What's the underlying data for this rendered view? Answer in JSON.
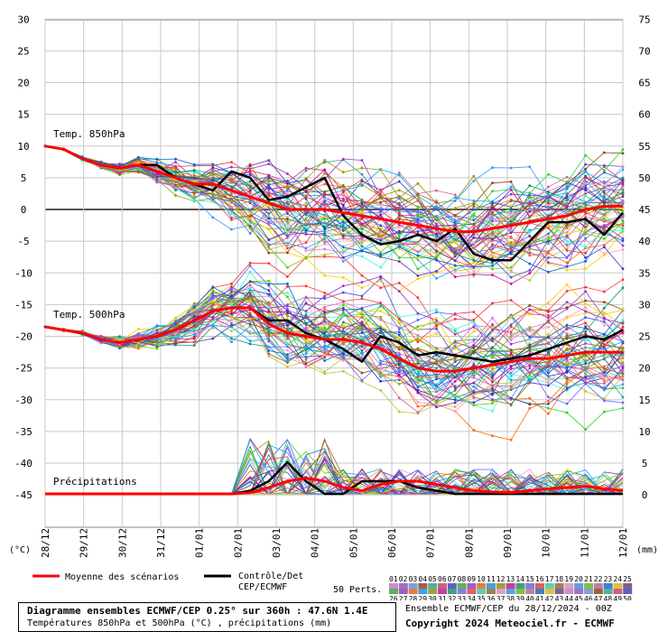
{
  "chart_data": {
    "type": "line",
    "x_ticks": [
      "28/12",
      "29/12",
      "30/12",
      "31/12",
      "01/01",
      "02/01",
      "03/01",
      "04/01",
      "05/01",
      "06/01",
      "07/01",
      "08/01",
      "09/01",
      "10/01",
      "11/01",
      "12/01"
    ],
    "left_axis": {
      "unit": "(°C)",
      "ticks": [
        30,
        25,
        20,
        15,
        10,
        5,
        0,
        -5,
        -10,
        -15,
        -20,
        -25,
        -30,
        -35,
        -40,
        -45
      ],
      "range": [
        -45,
        30
      ]
    },
    "right_axis": {
      "unit": "(mm)",
      "ticks": [
        75,
        70,
        65,
        60,
        55,
        50,
        45,
        40,
        35,
        30,
        25,
        20,
        15,
        10,
        5,
        0
      ],
      "range": [
        0,
        75
      ]
    },
    "panels": {
      "t850": {
        "label": "Temp. 850hPa"
      },
      "t500": {
        "label": "Temp. 500hPa"
      },
      "precip": {
        "label": "Précipitations"
      }
    },
    "series": [
      {
        "name": "Moyenne des scénarios",
        "color": "#ff0000",
        "t850": [
          10,
          9.5,
          8,
          7,
          6.5,
          7,
          6,
          5,
          4,
          4,
          3,
          2,
          1,
          0,
          0,
          0,
          -0.5,
          -1,
          -1.5,
          -2,
          -2.5,
          -3,
          -3.5,
          -3.5,
          -3,
          -2.5,
          -2,
          -1.5,
          -1,
          0,
          0.5,
          0.5
        ],
        "t500": [
          -18.5,
          -19,
          -19.5,
          -20.5,
          -21,
          -20.5,
          -20,
          -19,
          -17.5,
          -16,
          -15.5,
          -15.5,
          -18,
          -19.5,
          -20,
          -20.5,
          -20.5,
          -21,
          -22,
          -23.5,
          -25,
          -25.5,
          -25.5,
          -25,
          -24.5,
          -24,
          -23.5,
          -23.5,
          -23,
          -22.5,
          -22.5,
          -22.5
        ],
        "precip": [
          0,
          0,
          0,
          0,
          0,
          0,
          0,
          0,
          0,
          0,
          0,
          0.2,
          1,
          2,
          2.5,
          2,
          1,
          0.5,
          1.5,
          2,
          2,
          1.5,
          1,
          0.5,
          0.3,
          0.2,
          0.5,
          0.8,
          1,
          1.2,
          0.8,
          0.5
        ]
      },
      {
        "name": "Contrôle/Det CEP/ECMWF",
        "color": "#000000",
        "t850": [
          10,
          9.5,
          8,
          7,
          6.5,
          7,
          7,
          5,
          4,
          3,
          6,
          5,
          1.5,
          2,
          3.5,
          5,
          -1,
          -4,
          -5.5,
          -5,
          -4,
          -5,
          -3,
          -7,
          -8,
          -8,
          -5,
          -2,
          -2,
          -1.5,
          -4,
          -0.5
        ],
        "t500": [
          -18.5,
          -19,
          -19.5,
          -20.5,
          -21,
          -20.5,
          -20,
          -19,
          -17.5,
          -16,
          -15.5,
          -15.5,
          -17.5,
          -17.5,
          -19.5,
          -20.5,
          -22,
          -24,
          -20,
          -21,
          -23,
          -22.5,
          -23,
          -23.5,
          -24,
          -23.5,
          -23,
          -22,
          -21,
          -20,
          -20.5,
          -19
        ],
        "precip": [
          0,
          0,
          0,
          0,
          0,
          0,
          0,
          0,
          0,
          0,
          0,
          0.5,
          2,
          5,
          2,
          0,
          0,
          2,
          2,
          2,
          1,
          0.5,
          0,
          0,
          0,
          0,
          0,
          0,
          0,
          0,
          0,
          0
        ]
      }
    ],
    "members_count": 50,
    "members_label": "50 Perts.",
    "palette_row1": [
      "01",
      "02",
      "03",
      "04",
      "05",
      "06",
      "07",
      "08",
      "09",
      "10",
      "11",
      "12",
      "13",
      "14",
      "15",
      "16",
      "17",
      "18",
      "19",
      "20",
      "21",
      "22",
      "23",
      "24",
      "25"
    ],
    "palette_row2": [
      "26",
      "27",
      "28",
      "29",
      "30",
      "31",
      "32",
      "33",
      "34",
      "35",
      "36",
      "37",
      "38",
      "39",
      "40",
      "41",
      "42",
      "43",
      "44",
      "45",
      "46",
      "47",
      "48",
      "49",
      "50"
    ],
    "member_colors": [
      "#d873d8",
      "#4d4dd8",
      "#c0c040",
      "#8b4513",
      "#30a0a0",
      "#cc3366",
      "#3333cc",
      "#33cc33",
      "#9933cc",
      "#ff6600",
      "#00aaff",
      "#999900",
      "#cc0099",
      "#009966",
      "#6666ff",
      "#ff3333",
      "#33ffcc",
      "#996633",
      "#ff99cc",
      "#3399ff",
      "#66cc00",
      "#cc6699",
      "#0066cc",
      "#ffcc00",
      "#663399"
    ]
  },
  "legend": {
    "mean_label": "Moyenne des scénarios",
    "control_label_1": "Contrôle/Det",
    "control_label_2": "CEP/ECMWF"
  },
  "caption": {
    "title": "Diagramme ensembles ECMWF/CEP 0.25° sur 360h : 47.6N 1.4E",
    "subtitle": "Températures 850hPa et 500hPa (°C) , précipitations (mm)",
    "run": "Ensemble ECMWF/CEP du 28/12/2024 - 00Z",
    "copyright": "Copyright 2024 Meteociel.fr - ECMWF"
  }
}
